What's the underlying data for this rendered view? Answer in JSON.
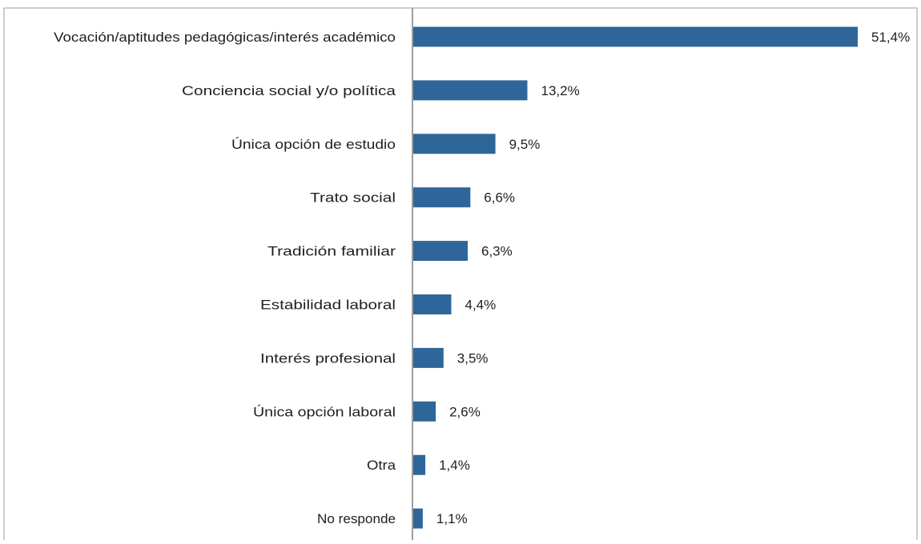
{
  "chart_data": {
    "type": "bar",
    "orientation": "horizontal",
    "categories": [
      "Vocación/aptitudes pedagógicas/interés académico",
      "Conciencia social y/o política",
      "Única opción de estudio",
      "Trato social",
      "Tradición familiar",
      "Estabilidad laboral",
      "Interés profesional",
      "Única opción laboral",
      "Otra",
      "No responde"
    ],
    "values": [
      51.4,
      13.2,
      9.5,
      6.6,
      6.3,
      4.4,
      3.5,
      2.6,
      1.4,
      1.1
    ],
    "value_labels": [
      "51,4%",
      "13,2%",
      "9,5%",
      "6,6%",
      "6,3%",
      "4,4%",
      "3,5%",
      "2,6%",
      "1,4%",
      "1,1%"
    ],
    "unit": "%",
    "xlim": [
      0,
      51.4
    ],
    "grid": false,
    "bar_color": "#2f6699"
  }
}
